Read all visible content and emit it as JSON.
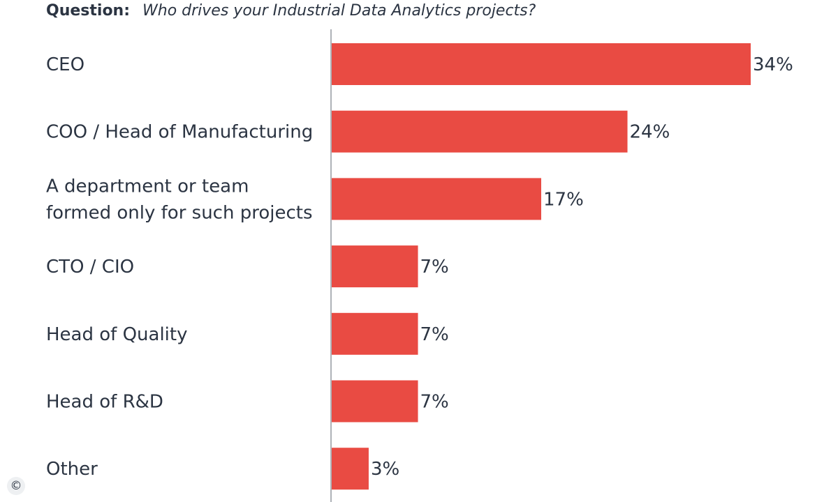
{
  "question": {
    "label": "Question:",
    "text": "Who drives your Industrial Data Analytics projects?"
  },
  "copyright_symbol": "©",
  "chart_data": {
    "type": "bar",
    "orientation": "horizontal",
    "title": "",
    "xlabel": "",
    "ylabel": "",
    "categories": [
      [
        "CEO"
      ],
      [
        "COO / Head of Manufacturing"
      ],
      [
        "A department or team",
        "formed only for such projects"
      ],
      [
        "CTO / CIO"
      ],
      [
        "Head of Quality"
      ],
      [
        "Head of R&D"
      ],
      [
        "Other"
      ]
    ],
    "values": [
      34,
      24,
      17,
      7,
      7,
      7,
      3
    ],
    "value_labels": [
      "34%",
      "24%",
      "17%",
      "7%",
      "7%",
      "7%",
      "3%"
    ],
    "xlim": [
      0,
      34
    ],
    "grid": false,
    "legend": "none",
    "colors": {
      "bar": "#e94b43",
      "axis": "#aeb2b8",
      "text": "#2b3442"
    }
  }
}
